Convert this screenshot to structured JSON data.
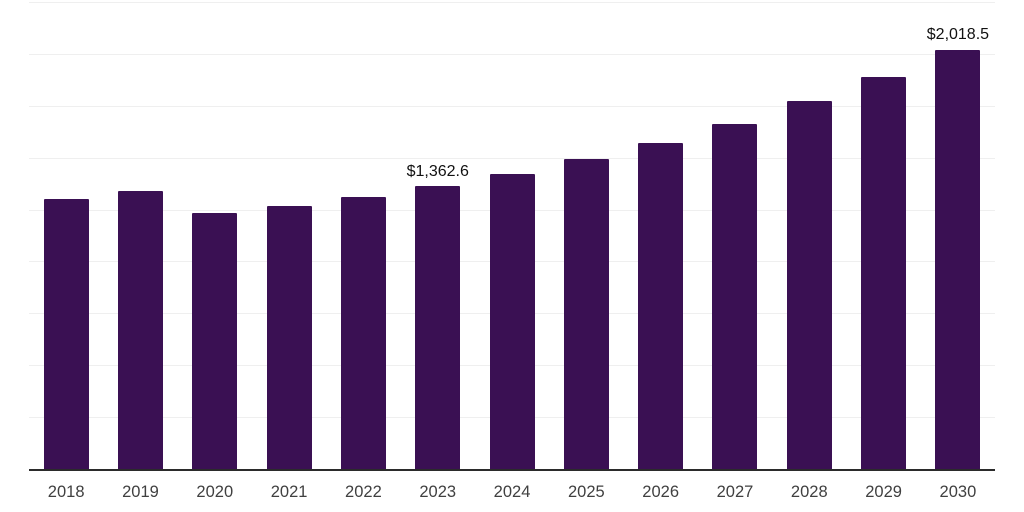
{
  "chart_data": {
    "type": "bar",
    "title": "",
    "xlabel": "",
    "ylabel": "",
    "categories": [
      "2018",
      "2019",
      "2020",
      "2021",
      "2022",
      "2023",
      "2024",
      "2025",
      "2026",
      "2027",
      "2028",
      "2029",
      "2030"
    ],
    "values": [
      1301,
      1340,
      1234,
      1267,
      1311,
      1362.6,
      1421,
      1493,
      1570,
      1662,
      1772,
      1888,
      2018.5
    ],
    "bar_labels": [
      "",
      "",
      "",
      "",
      "",
      "$1,362.6",
      "",
      "",
      "",
      "",
      "",
      "",
      "$2,018.5"
    ],
    "ylim": [
      0,
      2250
    ],
    "grid_step": 250,
    "grid": true,
    "legend": false
  },
  "style": {
    "bar_color": "#3a1053",
    "grid_color": "#efefef",
    "axis_color": "#2b2b2b",
    "tick_label_color": "#404040",
    "data_label_color": "#111111",
    "background": "#ffffff"
  }
}
